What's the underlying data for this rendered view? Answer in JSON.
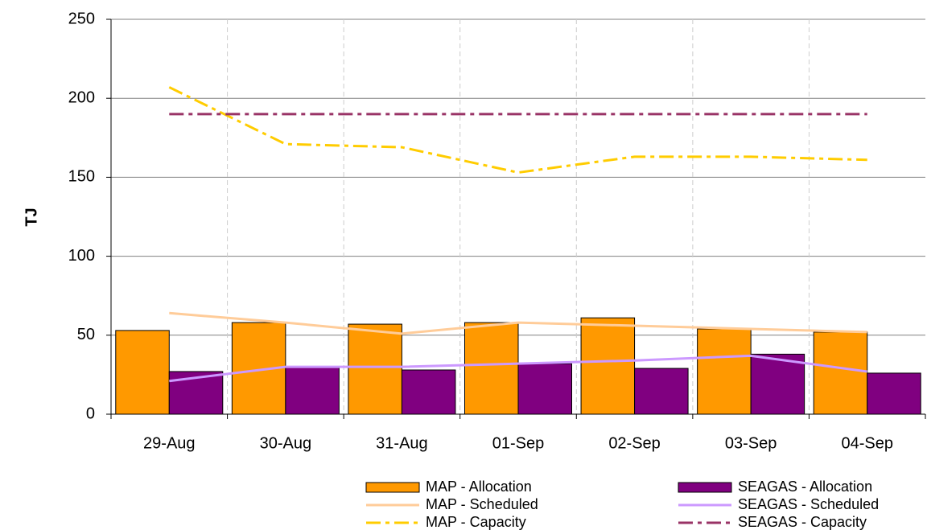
{
  "chart_data": {
    "type": "bar-line",
    "y_label": "TJ",
    "categories": [
      "29-Aug",
      "30-Aug",
      "31-Aug",
      "01-Sep",
      "02-Sep",
      "03-Sep",
      "04-Sep"
    ],
    "ylim": [
      0,
      250
    ],
    "yticks": [
      0,
      50,
      100,
      150,
      200,
      250
    ],
    "grid": true,
    "series": [
      {
        "name": "MAP - Allocation",
        "kind": "bar",
        "color": "#ff9900",
        "values": [
          53,
          58,
          57,
          58,
          61,
          54,
          52
        ]
      },
      {
        "name": "SEAGAS - Allocation",
        "kind": "bar",
        "color": "#800080",
        "values": [
          27,
          30,
          28,
          32,
          29,
          38,
          26
        ]
      },
      {
        "name": "MAP - Scheduled",
        "kind": "line",
        "style": "solid",
        "color": "#ffcc99",
        "values": [
          64,
          58,
          51,
          58,
          56,
          54,
          52
        ]
      },
      {
        "name": "SEAGAS - Scheduled",
        "kind": "line",
        "style": "solid",
        "color": "#cc99ff",
        "values": [
          21,
          30,
          30,
          32,
          34,
          37,
          27
        ]
      },
      {
        "name": "MAP - Capacity",
        "kind": "line",
        "style": "dashdot",
        "color": "#ffcc00",
        "values": [
          207,
          171,
          169,
          153,
          163,
          163,
          161
        ]
      },
      {
        "name": "SEAGAS - Capacity",
        "kind": "line",
        "style": "dashdot",
        "color": "#993366",
        "values": [
          190,
          190,
          190,
          190,
          190,
          190,
          190
        ]
      }
    ]
  }
}
